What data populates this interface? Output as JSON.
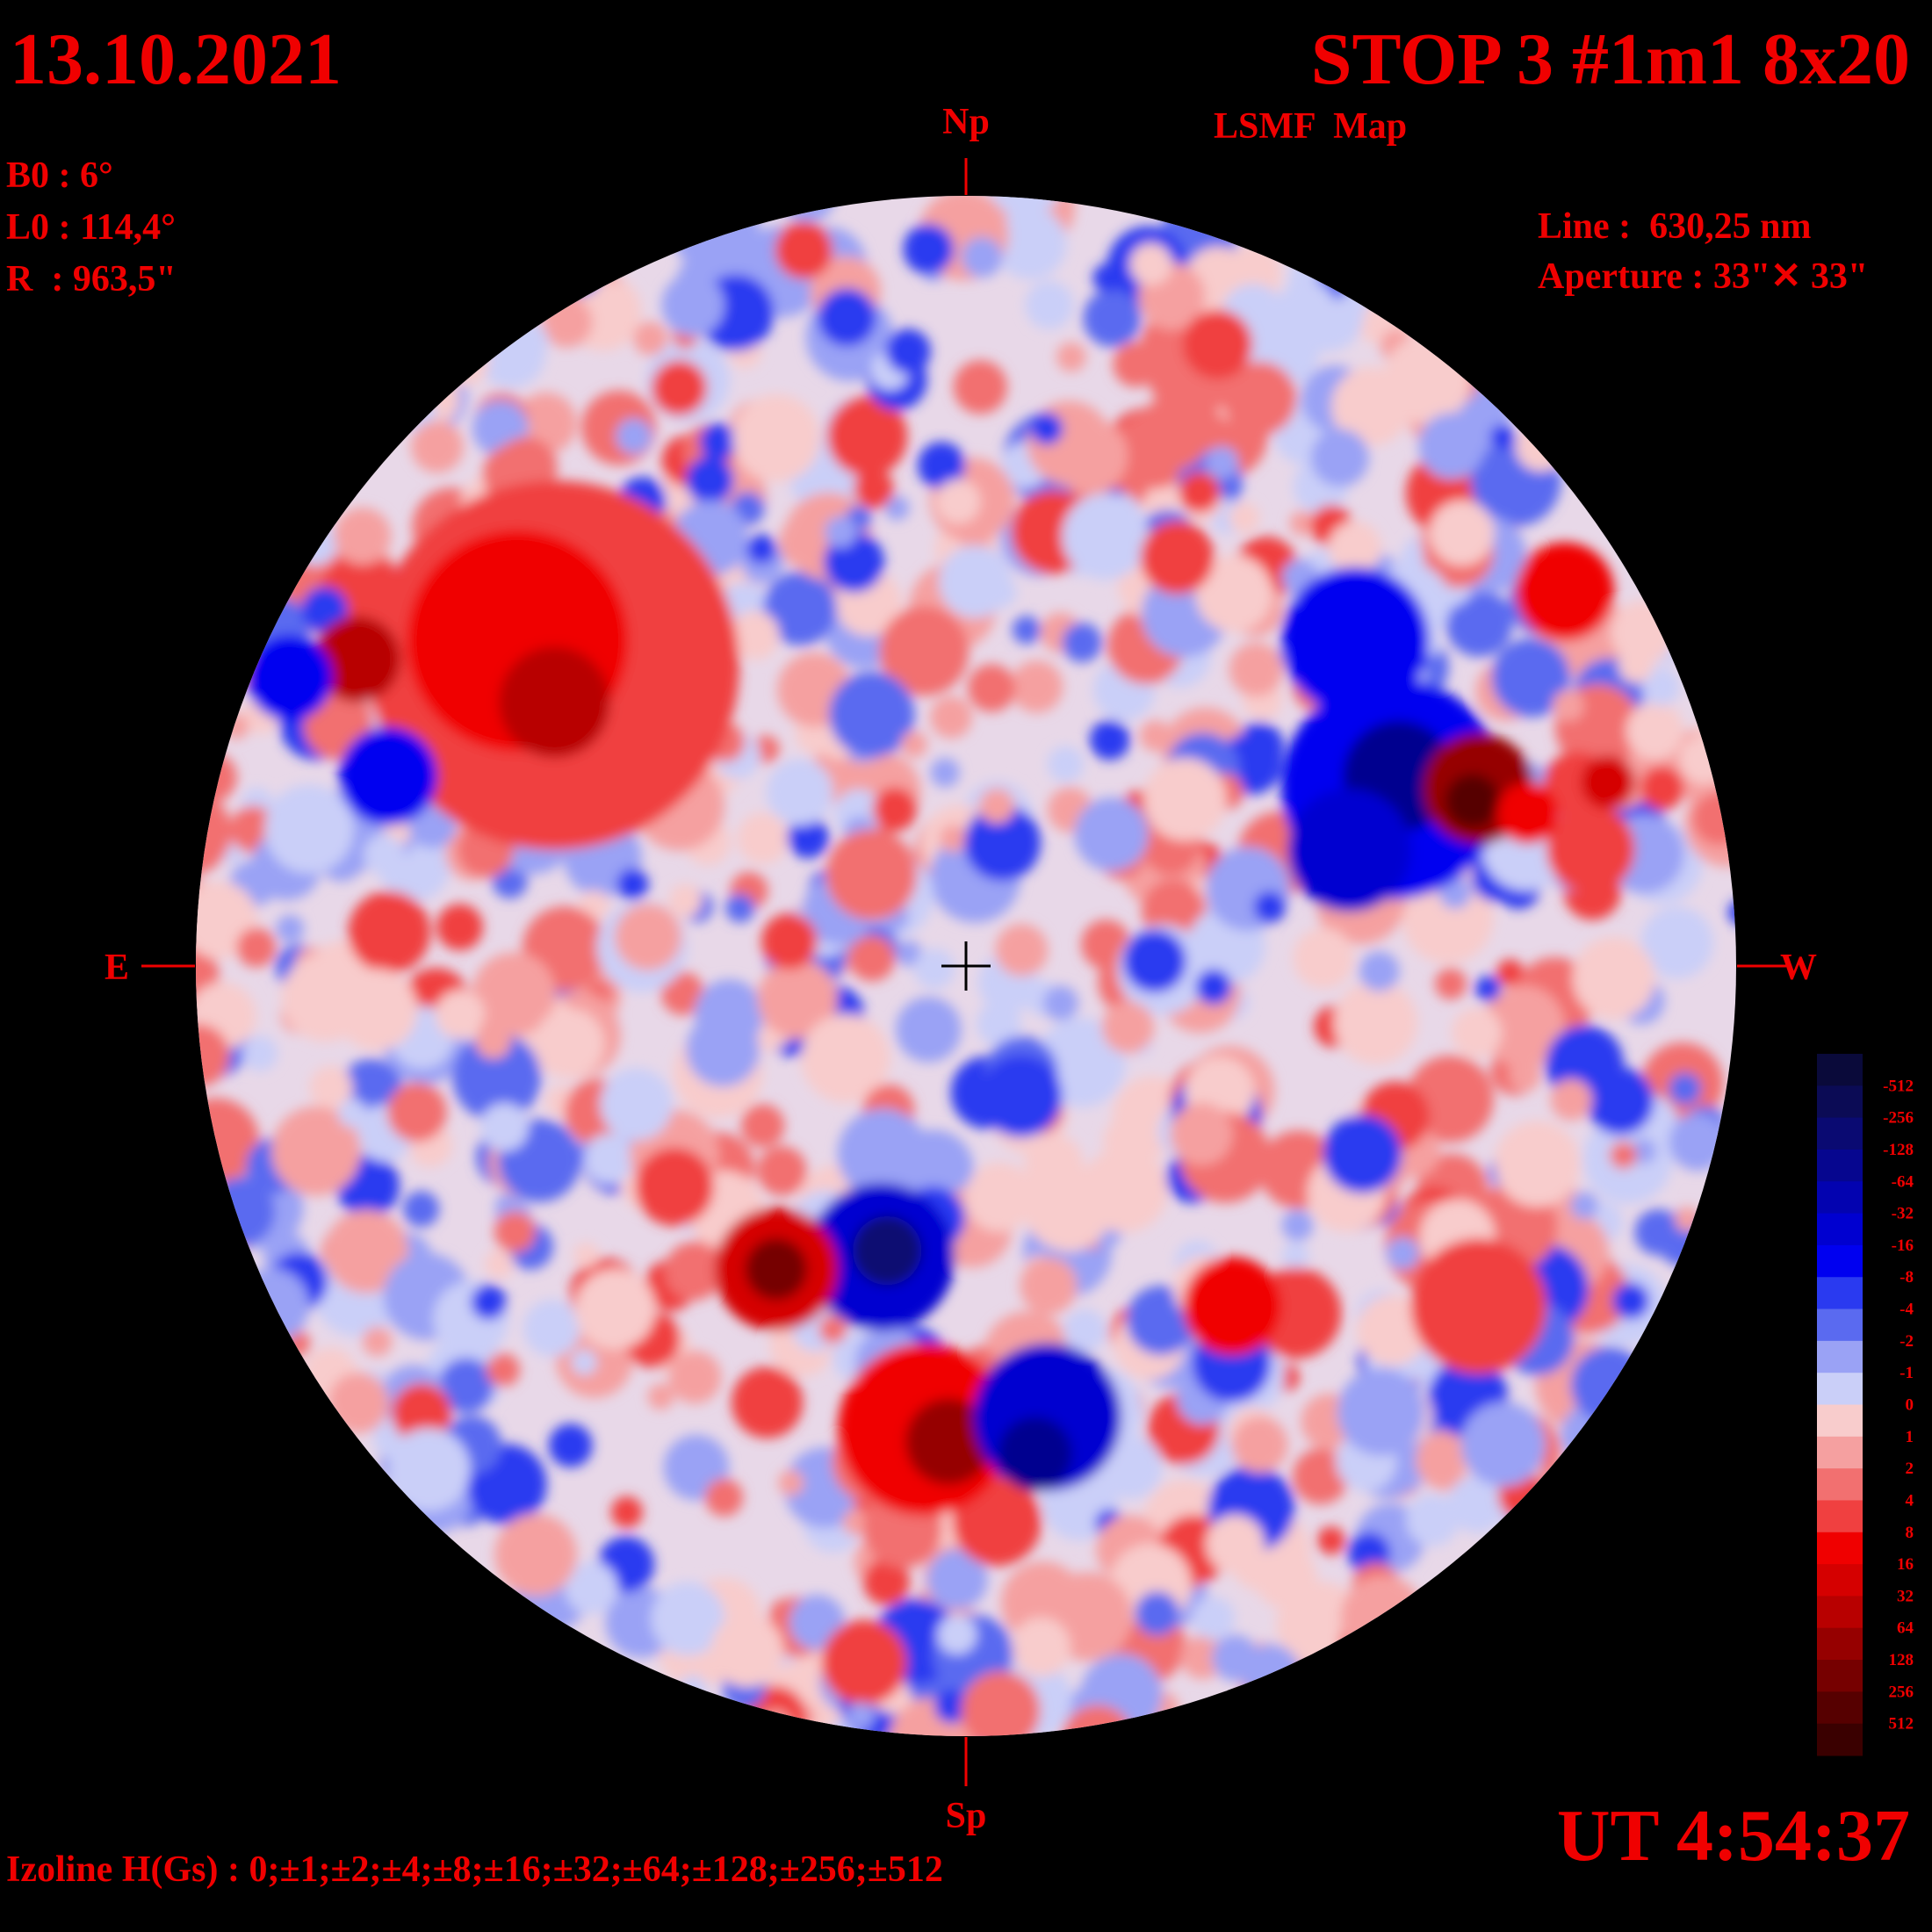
{
  "header": {
    "date": "13.10.2021",
    "title": "STOP 3 #1m1 8x20",
    "subtitle": "LSMF  Map"
  },
  "parameters": {
    "b0": "B0 : 6°",
    "l0": "L0 : 114,4°",
    "r": "R  : 963,5\""
  },
  "instrument": {
    "line": "Line :  630,25 nm",
    "aperture": "Aperture : 33\"✕ 33\""
  },
  "directions": {
    "north": "Np",
    "south": "Sp",
    "east": "E",
    "west": "W"
  },
  "time": "UT 4:54:37",
  "izoline": "Izoline H(Gs) : 0;±1;±2;±4;±8;±16;±32;±64;±128;±256;±512",
  "colorbar": {
    "labels": [
      "-512",
      "-256",
      "-128",
      "-64",
      "-32",
      "-16",
      "-8",
      "-4",
      "-2",
      "-1",
      "0",
      "1",
      "2",
      "4",
      "8",
      "16",
      "32",
      "64",
      "128",
      "256",
      "512"
    ],
    "colors": [
      "#0a0a3a",
      "#0b0b55",
      "#0a0a72",
      "#06068f",
      "#0303b0",
      "#0000d0",
      "#0000f0",
      "#2a3af0",
      "#5a6af0",
      "#9aa2f5",
      "#cacff8",
      "#f8cccc",
      "#f5a0a0",
      "#f27070",
      "#f04040",
      "#f00000",
      "#d50000",
      "#b80000",
      "#960000",
      "#760000",
      "#560000",
      "#3a0000"
    ]
  }
}
